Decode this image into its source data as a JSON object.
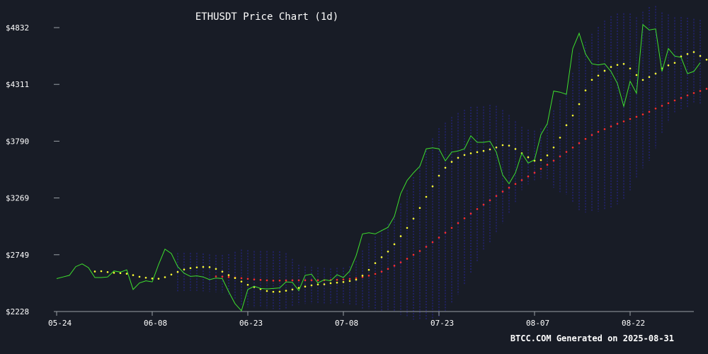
{
  "title": "ETHUSDT Price Chart (1d)",
  "footer": "BTCC.COM Generated on 2025-08-31",
  "colors": {
    "background": "#181c26",
    "price": "#3ee02e",
    "ma_fast": "#ffff33",
    "ma_slow": "#ff2d2d",
    "band": "#24247a",
    "axis": "#9aa0a6",
    "text": "#ffffff"
  },
  "chart_data": {
    "type": "line",
    "title": "ETHUSDT Price Chart (1d)",
    "xlabel": "",
    "ylabel": "",
    "x_start": "05-24",
    "x_ticks": [
      "05-24",
      "06-08",
      "06-23",
      "07-08",
      "07-23",
      "08-07",
      "08-22"
    ],
    "y_ticks": [
      "$2228",
      "$2749",
      "$3269",
      "$3790",
      "$4311",
      "$4832"
    ],
    "ylim": [
      2228,
      4962
    ],
    "grid": false,
    "legend": "none",
    "series": [
      {
        "role": "price",
        "values": [
          2530,
          2545,
          2560,
          2640,
          2665,
          2630,
          2540,
          2540,
          2545,
          2600,
          2590,
          2610,
          2430,
          2490,
          2510,
          2500,
          2660,
          2800,
          2760,
          2640,
          2580,
          2550,
          2555,
          2545,
          2520,
          2535,
          2530,
          2410,
          2300,
          2235,
          2430,
          2460,
          2440,
          2435,
          2440,
          2445,
          2500,
          2495,
          2420,
          2560,
          2570,
          2490,
          2520,
          2510,
          2565,
          2540,
          2600,
          2740,
          2940,
          2950,
          2940,
          2970,
          3000,
          3100,
          3310,
          3430,
          3500,
          3560,
          3720,
          3730,
          3720,
          3610,
          3690,
          3700,
          3720,
          3840,
          3780,
          3780,
          3790,
          3690,
          3480,
          3400,
          3500,
          3680,
          3590,
          3620,
          3850,
          3950,
          4250,
          4240,
          4220,
          4640,
          4780,
          4590,
          4500,
          4490,
          4500,
          4430,
          4320,
          4110,
          4340,
          4230,
          4860,
          4810,
          4820,
          4430,
          4640,
          4570,
          4560,
          4410,
          4430,
          4510
        ]
      },
      {
        "role": "ma_fast",
        "start_index": 6,
        "values": [
          2595,
          2598,
          2590,
          2583,
          2580,
          2575,
          2562,
          2547,
          2538,
          2531,
          2529,
          2543,
          2567,
          2591,
          2613,
          2626,
          2633,
          2637,
          2635,
          2619,
          2594,
          2562,
          2535,
          2503,
          2473,
          2453,
          2434,
          2416,
          2409,
          2410,
          2419,
          2430,
          2445,
          2457,
          2468,
          2476,
          2478,
          2488,
          2493,
          2499,
          2508,
          2520,
          2557,
          2610,
          2672,
          2726,
          2778,
          2845,
          2919,
          2995,
          3080,
          3178,
          3280,
          3376,
          3474,
          3547,
          3601,
          3638,
          3664,
          3679,
          3690,
          3701,
          3715,
          3733,
          3754,
          3750,
          3719,
          3680,
          3643,
          3611,
          3617,
          3660,
          3733,
          3823,
          3937,
          4026,
          4130,
          4256,
          4353,
          4392,
          4436,
          4471,
          4490,
          4499,
          4457,
          4397,
          4352,
          4379,
          4410,
          4457,
          4486,
          4509,
          4568,
          4590,
          4608,
          4572,
          4538
        ]
      },
      {
        "role": "ma_slow",
        "start_index": 25,
        "values": [
          2550,
          2548,
          2544,
          2539,
          2534,
          2528,
          2522,
          2518,
          2514,
          2511,
          2512,
          2513,
          2514,
          2514,
          2515,
          2515,
          2515,
          2516,
          2517,
          2519,
          2522,
          2527,
          2534,
          2544,
          2557,
          2573,
          2594,
          2619,
          2648,
          2679,
          2712,
          2748,
          2783,
          2822,
          2864,
          2906,
          2951,
          2995,
          3039,
          3083,
          3126,
          3168,
          3208,
          3248,
          3288,
          3328,
          3364,
          3398,
          3433,
          3467,
          3501,
          3537,
          3574,
          3612,
          3651,
          3692,
          3732,
          3772,
          3811,
          3847,
          3876,
          3901,
          3926,
          3950,
          3972,
          3994,
          4014,
          4036,
          4060,
          4090,
          4115,
          4139,
          4164,
          4187,
          4210,
          4232,
          4251,
          4271
        ]
      }
    ]
  }
}
